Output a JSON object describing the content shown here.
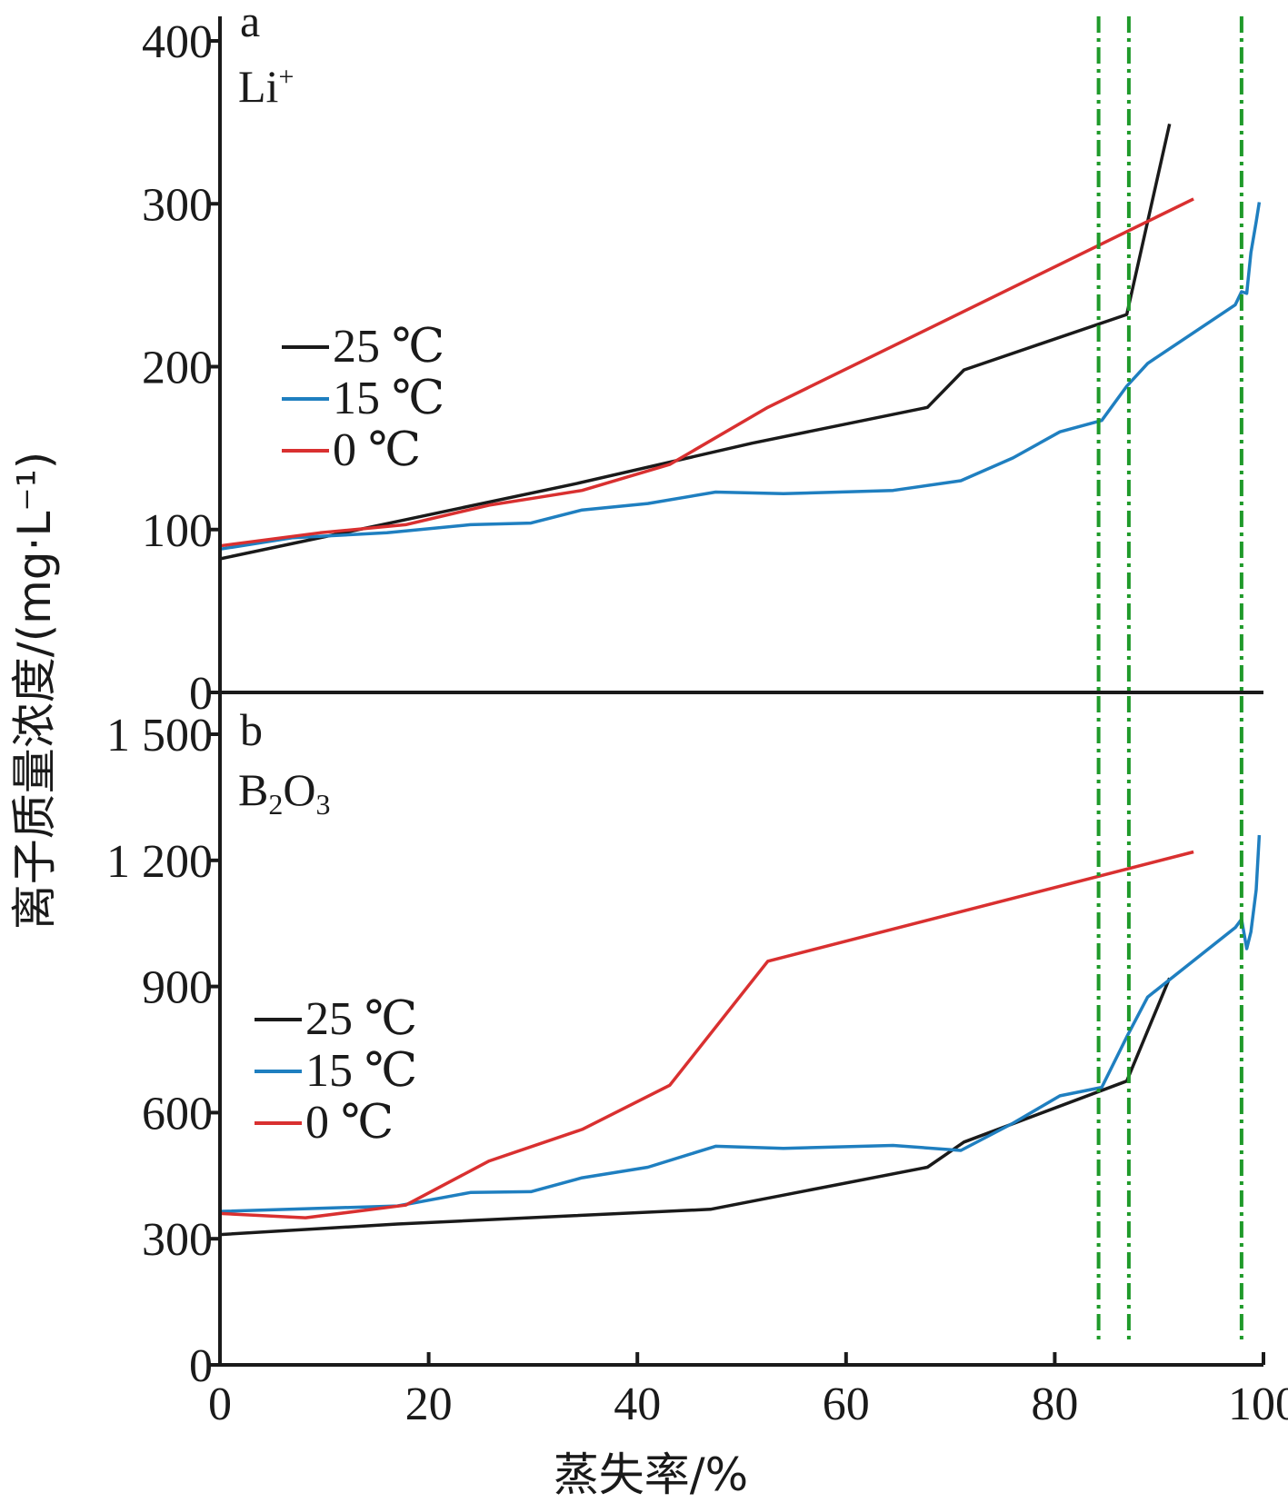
{
  "chart_data": {
    "type": "line",
    "xlabel": "蒸失率/%",
    "ylabel": "离子质量浓度/(mg·L⁻¹)",
    "xlim": [
      0,
      100
    ],
    "x_ticks": [
      "0",
      "20",
      "40",
      "60",
      "80",
      "100"
    ],
    "reference_lines_x": [
      84.2,
      87.1,
      97.9
    ],
    "reference_line_color": "#1f9a2a",
    "panels": [
      {
        "panel_label": "a",
        "ion_label": "Li",
        "ion_superscript": "+",
        "ylim": [
          0,
          400
        ],
        "y_ticks": [
          "0",
          "100",
          "200",
          "300",
          "400"
        ],
        "legend": [
          "25 ℃",
          "15 ℃",
          "0 ℃"
        ],
        "series": [
          {
            "name": "25 ℃",
            "color": "#1a1a1a",
            "x": [
              0,
              17,
              34,
              51,
              67.8,
              71.3,
              86.9,
              91
            ],
            "y": [
              82,
              105,
              128,
              153,
              175,
              198,
              232,
              349
            ]
          },
          {
            "name": "15 ℃",
            "color": "#1f7fc0",
            "x": [
              0,
              7,
              16,
              24,
              29.8,
              34.7,
              41,
              47.5,
              54,
              64.5,
              71,
              76,
              80.5,
              84.5,
              86.9,
              88.9,
              97.3,
              97.9,
              98.4,
              98.8,
              99.3,
              99.6
            ],
            "y": [
              88,
              95,
              98,
              103,
              104,
              112,
              116,
              123,
              122,
              124,
              130,
              144,
              160,
              167,
              188,
              202,
              238,
              246,
              245,
              270,
              289,
              301
            ]
          },
          {
            "name": "0 ℃",
            "color": "#d93030",
            "x": [
              0,
              9.6,
              17.8,
              25.8,
              29.8,
              34.7,
              43.1,
              52.5,
              93.3
            ],
            "y": [
              90,
              98,
              103,
              115,
              119,
              124,
              140,
              175,
              303
            ]
          }
        ]
      },
      {
        "panel_label": "b",
        "ion_label": "B",
        "ion_sub1": "2",
        "ion_label2": "O",
        "ion_sub2": "3",
        "ylim": [
          0,
          1500
        ],
        "y_ticks": [
          "0",
          "300",
          "600",
          "900",
          "1 200",
          "1 500"
        ],
        "legend": [
          "25 ℃",
          "15 ℃",
          "0 ℃"
        ],
        "series": [
          {
            "name": "25 ℃",
            "color": "#1a1a1a",
            "x": [
              0,
              17,
              34,
              47,
              67.8,
              71.3,
              86.9,
              91
            ],
            "y": [
              310,
              335,
              355,
              370,
              470,
              530,
              675,
              920
            ]
          },
          {
            "name": "15 ℃",
            "color": "#1f7fc0",
            "x": [
              0,
              17,
              24,
              29.8,
              34.7,
              41,
              47.5,
              54,
              64.5,
              71,
              76,
              80.5,
              84.5,
              86.9,
              88.9,
              97.3,
              97.9,
              98.4,
              98.8,
              99.3,
              99.6
            ],
            "y": [
              365,
              378,
              410,
              412,
              445,
              470,
              520,
              515,
              522,
              510,
              575,
              640,
              660,
              780,
              875,
              1040,
              1060,
              990,
              1030,
              1130,
              1260
            ]
          },
          {
            "name": "0 ℃",
            "color": "#d93030",
            "x": [
              0,
              8.2,
              17.8,
              25.8,
              34.7,
              43.1,
              52.5,
              93.3
            ],
            "y": [
              360,
              350,
              380,
              485,
              560,
              665,
              960,
              1220
            ]
          }
        ]
      }
    ]
  }
}
